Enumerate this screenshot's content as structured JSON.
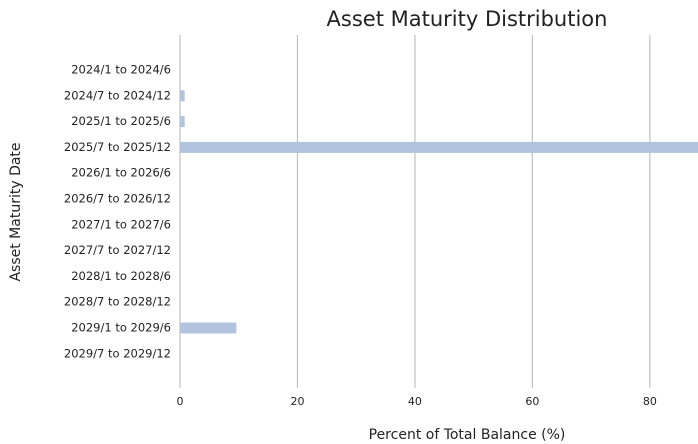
{
  "chart_data": {
    "type": "barh",
    "title": "Asset Maturity Distribution",
    "x_label": "Percent of Total Balance (%)",
    "y_label": "Asset Maturity Date",
    "categories": [
      "2024/1 to 2024/6",
      "2024/7 to 2024/12",
      "2025/1 to 2025/6",
      "2025/7 to 2025/12",
      "2026/1 to 2026/6",
      "2026/7 to 2026/12",
      "2027/1 to 2027/6",
      "2027/7 to 2027/12",
      "2028/1 to 2028/6",
      "2028/7 to 2028/12",
      "2029/1 to 2029/6",
      "2029/7 to 2029/12"
    ],
    "values": [
      0,
      0.8,
      0.8,
      89,
      0,
      0,
      0,
      0,
      0,
      0,
      9.6,
      0
    ],
    "color": "#b0c4de",
    "xlim": [
      0,
      88.2
    ],
    "xticks": [
      0,
      20,
      40,
      60,
      80
    ],
    "grid": true
  }
}
